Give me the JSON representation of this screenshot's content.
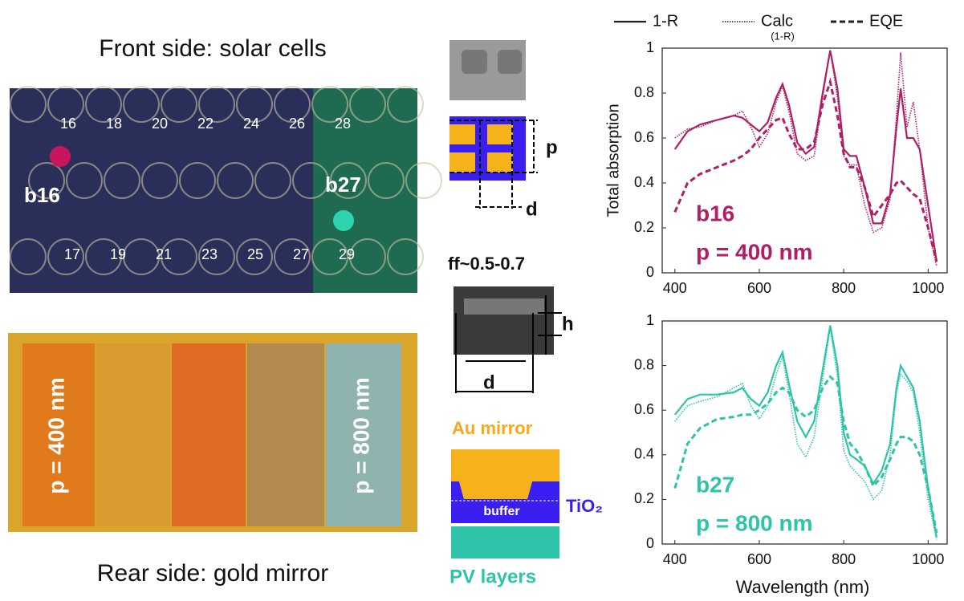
{
  "figure": {
    "front_title": "Front side: solar cells",
    "rear_title": "Rear side: gold mirror",
    "front_labels": [
      "b16",
      "b27"
    ],
    "cells_top": [
      "16",
      "18",
      "20",
      "22",
      "24",
      "26",
      "28"
    ],
    "cells_bottom": [
      "17",
      "19",
      "21",
      "23",
      "25",
      "27",
      "29"
    ],
    "rear_labels": [
      "p = 400 nm",
      "p = 800 nm"
    ],
    "schematic": {
      "p": "p",
      "d_top": "d",
      "ff": "ff~0.5-0.7",
      "h": "h",
      "d_bottom": "d",
      "au": "Au mirror",
      "tio2": "TiO₂",
      "buffer": "buffer",
      "pv": "PV layers"
    }
  },
  "legend": [
    {
      "label": "1-R",
      "style": "solid"
    },
    {
      "label": "Calc",
      "sublabel": "(1-R)",
      "style": "dotted"
    },
    {
      "label": "EQE",
      "style": "dashed"
    }
  ],
  "chart_data": [
    {
      "type": "line",
      "color": "#b01f65",
      "ylabel": "Total absorption",
      "annotations": [
        "b16",
        "p = 400 nm"
      ],
      "x": [
        400,
        430,
        460,
        500,
        540,
        560,
        580,
        600,
        620,
        640,
        655,
        670,
        690,
        710,
        730,
        750,
        768,
        785,
        800,
        815,
        830,
        850,
        870,
        890,
        910,
        925,
        935,
        950,
        965,
        980,
        1000,
        1020
      ],
      "xlim": [
        370,
        1045
      ],
      "xticks": [
        400,
        600,
        800,
        1000
      ],
      "ylim": [
        0,
        1
      ],
      "yticks": [
        0,
        0.2,
        0.4,
        0.6,
        0.8,
        1
      ],
      "series": [
        {
          "style": "solid",
          "values": [
            0.55,
            0.63,
            0.66,
            0.68,
            0.7,
            0.69,
            0.66,
            0.63,
            0.67,
            0.78,
            0.84,
            0.75,
            0.58,
            0.53,
            0.56,
            0.8,
            0.99,
            0.82,
            0.55,
            0.52,
            0.52,
            0.38,
            0.22,
            0.22,
            0.35,
            0.65,
            0.82,
            0.6,
            0.6,
            0.55,
            0.3,
            0.05
          ]
        },
        {
          "style": "dotted",
          "values": [
            0.6,
            0.64,
            0.65,
            0.68,
            0.7,
            0.72,
            0.65,
            0.56,
            0.62,
            0.76,
            0.83,
            0.72,
            0.53,
            0.5,
            0.52,
            0.78,
            0.99,
            0.78,
            0.52,
            0.48,
            0.48,
            0.3,
            0.18,
            0.2,
            0.33,
            0.7,
            0.98,
            0.65,
            0.76,
            0.55,
            0.2,
            0.03
          ]
        },
        {
          "style": "dashed",
          "values": [
            0.27,
            0.4,
            0.44,
            0.47,
            0.5,
            0.52,
            0.55,
            0.6,
            0.64,
            0.68,
            0.69,
            0.62,
            0.55,
            0.55,
            0.58,
            0.75,
            0.85,
            0.7,
            0.53,
            0.47,
            0.47,
            0.38,
            0.25,
            0.3,
            0.35,
            0.4,
            0.41,
            0.38,
            0.35,
            0.33,
            0.2,
            0.05
          ]
        }
      ]
    },
    {
      "type": "line",
      "color": "#2ec4a9",
      "xlabel": "Wavelength (nm)",
      "annotations": [
        "b27",
        "p = 800 nm"
      ],
      "x": [
        400,
        430,
        460,
        500,
        540,
        560,
        580,
        600,
        620,
        640,
        655,
        670,
        690,
        710,
        730,
        750,
        768,
        785,
        800,
        815,
        830,
        850,
        870,
        890,
        910,
        925,
        935,
        950,
        965,
        980,
        1000,
        1020
      ],
      "xlim": [
        370,
        1045
      ],
      "xticks": [
        400,
        600,
        800,
        1000
      ],
      "ylim": [
        0,
        1
      ],
      "yticks": [
        0,
        0.2,
        0.4,
        0.6,
        0.8,
        1
      ],
      "series": [
        {
          "style": "solid",
          "values": [
            0.58,
            0.65,
            0.67,
            0.67,
            0.68,
            0.7,
            0.65,
            0.62,
            0.68,
            0.8,
            0.86,
            0.72,
            0.55,
            0.48,
            0.55,
            0.78,
            0.98,
            0.8,
            0.5,
            0.4,
            0.38,
            0.35,
            0.27,
            0.33,
            0.45,
            0.7,
            0.8,
            0.75,
            0.7,
            0.55,
            0.25,
            0.03
          ]
        },
        {
          "style": "dotted",
          "values": [
            0.55,
            0.62,
            0.64,
            0.66,
            0.7,
            0.72,
            0.62,
            0.56,
            0.62,
            0.76,
            0.84,
            0.68,
            0.45,
            0.39,
            0.48,
            0.74,
            0.97,
            0.75,
            0.42,
            0.35,
            0.32,
            0.28,
            0.2,
            0.24,
            0.4,
            0.68,
            0.76,
            0.73,
            0.68,
            0.5,
            0.2,
            0.02
          ]
        },
        {
          "style": "dashed",
          "values": [
            0.25,
            0.45,
            0.52,
            0.56,
            0.57,
            0.58,
            0.58,
            0.6,
            0.63,
            0.68,
            0.7,
            0.68,
            0.6,
            0.57,
            0.6,
            0.7,
            0.75,
            0.72,
            0.55,
            0.45,
            0.42,
            0.35,
            0.26,
            0.3,
            0.38,
            0.45,
            0.48,
            0.48,
            0.46,
            0.4,
            0.25,
            0.05
          ]
        }
      ]
    }
  ]
}
